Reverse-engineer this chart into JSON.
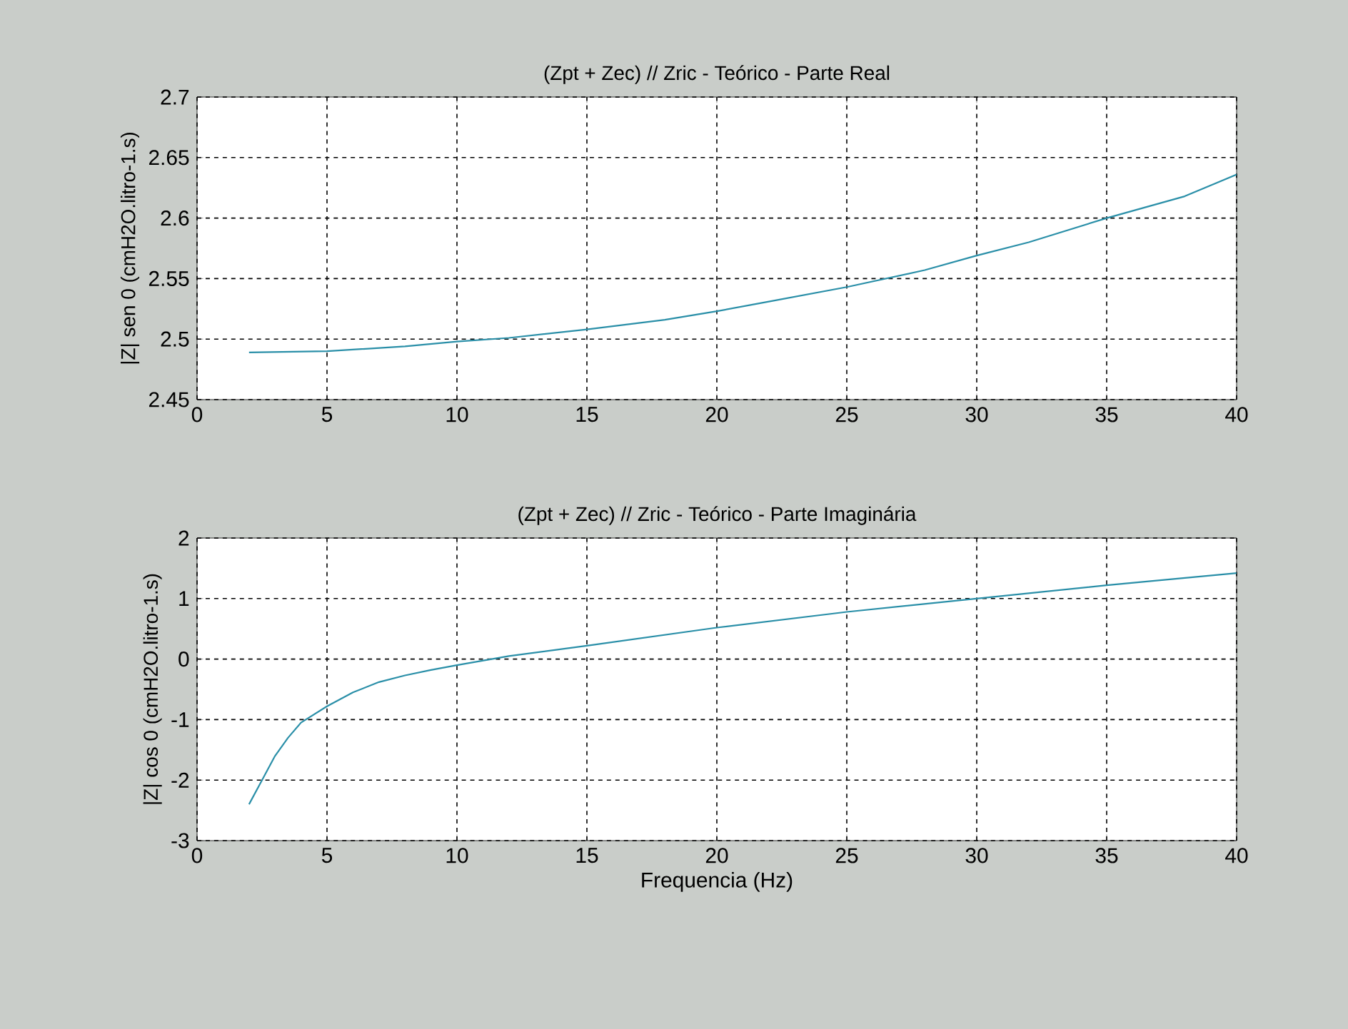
{
  "chart_data": [
    {
      "type": "line",
      "title": "(Zpt + Zec) // Zric - Teórico - Parte Real",
      "ylabel": "|Z| sen 0 (cmH2O.litro-1.s)",
      "x": [
        2,
        5,
        8,
        10,
        12,
        15,
        18,
        20,
        22,
        25,
        28,
        30,
        32,
        35,
        38,
        40
      ],
      "series": [
        {
          "color": "#2a8fa8",
          "values": [
            2.489,
            2.49,
            2.494,
            2.498,
            2.501,
            2.508,
            2.516,
            2.523,
            2.531,
            2.543,
            2.557,
            2.569,
            2.58,
            2.6,
            2.618,
            2.636
          ]
        }
      ],
      "xlim": [
        0,
        40
      ],
      "ylim": [
        2.45,
        2.7
      ],
      "xticks": [
        0,
        5,
        10,
        15,
        20,
        25,
        30,
        35,
        40
      ],
      "yticks": [
        2.45,
        2.5,
        2.55,
        2.6,
        2.65,
        2.7
      ],
      "grid": true
    },
    {
      "type": "line",
      "title": "(Zpt + Zec) // Zric - Teórico - Parte Imaginária",
      "xlabel": "Frequencia (Hz)",
      "ylabel": "|Z| cos 0 (cmH2O.litro-1.s)",
      "x": [
        2,
        2.5,
        3,
        3.5,
        4,
        5,
        6,
        7,
        8,
        9,
        10,
        12,
        15,
        20,
        25,
        30,
        35,
        40
      ],
      "series": [
        {
          "color": "#2a8fa8",
          "values": [
            -2.4,
            -2.0,
            -1.6,
            -1.3,
            -1.05,
            -0.78,
            -0.55,
            -0.38,
            -0.27,
            -0.18,
            -0.1,
            0.05,
            0.22,
            0.52,
            0.78,
            1.0,
            1.22,
            1.42
          ]
        }
      ],
      "xlim": [
        0,
        40
      ],
      "ylim": [
        -3,
        2
      ],
      "xticks": [
        0,
        5,
        10,
        15,
        20,
        25,
        30,
        35,
        40
      ],
      "yticks": [
        -3,
        -2,
        -1,
        0,
        1,
        2
      ],
      "grid": true
    }
  ]
}
